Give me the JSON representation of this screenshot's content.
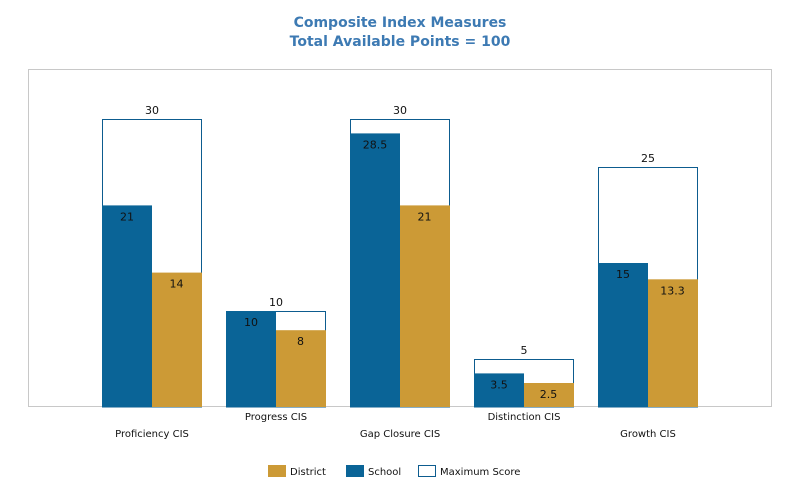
{
  "chart_data": {
    "type": "bar",
    "title": "Composite Index Measures",
    "subtitle": "Total Available Points = 100",
    "categories": [
      "Proficiency CIS",
      "Progress CIS",
      "Gap Closure CIS",
      "Distinction CIS",
      "Growth CIS"
    ],
    "series": [
      {
        "name": "Maximum Score",
        "values": [
          30,
          10,
          30,
          5,
          25
        ],
        "color": "#ffffff",
        "stroke": "#0d5c8f"
      },
      {
        "name": "School",
        "values": [
          21,
          10,
          28.5,
          3.5,
          15
        ],
        "color": "#0a6497"
      },
      {
        "name": "District",
        "values": [
          14,
          8,
          21,
          2.5,
          13.3
        ],
        "color": "#cc9a36"
      }
    ],
    "ylim": [
      0,
      35
    ],
    "grid": false,
    "legend": {
      "position": "bottom",
      "order": [
        "District",
        "School",
        "Maximum Score"
      ]
    }
  }
}
